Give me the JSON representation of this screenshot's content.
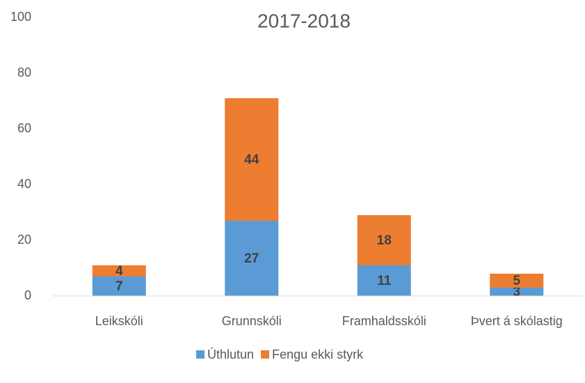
{
  "chart_data": {
    "type": "stacked_bar",
    "title": "2017-2018",
    "categories": [
      "Leikskóli",
      "Grunnskóli",
      "Framhaldsskóli",
      "Þvert á skólastig"
    ],
    "series": [
      {
        "name": "Úthlutun",
        "color": "#5b9bd5",
        "values": [
          7,
          27,
          11,
          3
        ]
      },
      {
        "name": "Fengu ekki styrk",
        "color": "#ed7d31",
        "values": [
          4,
          44,
          18,
          5
        ]
      }
    ],
    "ylim": [
      0,
      100
    ],
    "yticks": [
      0,
      20,
      40,
      60,
      80,
      100
    ],
    "grid": false,
    "legend": "bottom"
  }
}
